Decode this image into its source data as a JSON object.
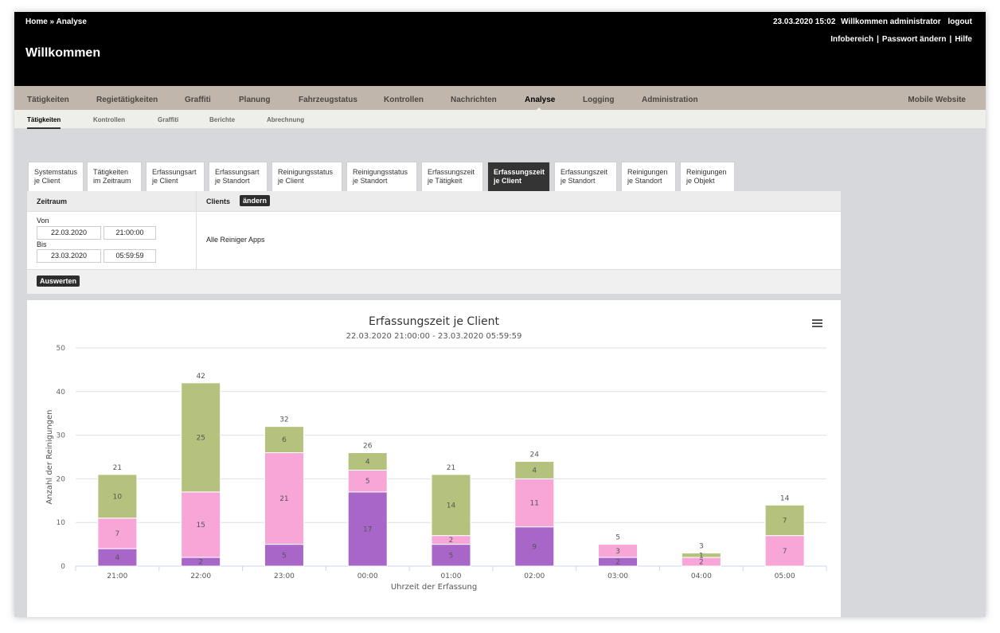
{
  "header": {
    "breadcrumb": "Home » Analyse",
    "title": "Willkommen",
    "datetime": "23.03.2020 15:02",
    "welcome": "Willkommen administrator",
    "logout": "logout",
    "links": [
      "Infobereich",
      "Passwort ändern",
      "Hilfe"
    ]
  },
  "nav": {
    "main": [
      "Tätigkeiten",
      "Regietätigkeiten",
      "Graffiti",
      "Planung",
      "Fahrzeugstatus",
      "Kontrollen",
      "Nachrichten",
      "Analyse",
      "Logging",
      "Administration"
    ],
    "main_active": "Analyse",
    "mobile": "Mobile Website",
    "sub": [
      "Tätigkeiten",
      "Kontrollen",
      "Graffiti",
      "Berichte",
      "Abrechnung"
    ],
    "sub_active": "Tätigkeiten"
  },
  "tabs": [
    [
      "Systemstatus",
      "je Client"
    ],
    [
      "Tätigkeiten",
      "im Zeitraum"
    ],
    [
      "Erfassungsart",
      "je Client"
    ],
    [
      "Erfassungsart",
      "je Standort"
    ],
    [
      "Reinigungsstatus",
      "je Client"
    ],
    [
      "Reinigungsstatus",
      "je Standort"
    ],
    [
      "Erfassungszeit",
      "je Tätigkeit"
    ],
    [
      "Erfassungszeit",
      "je Client"
    ],
    [
      "Erfassungszeit",
      "je Standort"
    ],
    [
      "Reinigungen",
      "je Standort"
    ],
    [
      "Reinigungen",
      "je Objekt"
    ]
  ],
  "active_tab": 7,
  "filter": {
    "zeitraum_label": "Zeitraum",
    "clients_label": "Clients",
    "change_button": "ändern",
    "von_label": "Von",
    "bis_label": "Bis",
    "von_date": "22.03.2020",
    "von_time": "21:00:00",
    "bis_date": "23.03.2020",
    "bis_time": "05:59:59",
    "clients_value": "Alle Reiniger Apps",
    "evaluate_button": "Auswerten"
  },
  "colors": {
    "purple": "#a866c9",
    "pink": "#f8a6d8",
    "olive": "#b5c27d",
    "active_tab": "#343434"
  },
  "chart_data": {
    "type": "bar",
    "stacked": true,
    "title": "Erfassungszeit je Client",
    "subtitle": "22.03.2020 21:00:00 - 23.03.2020 05:59:59",
    "xlabel": "Uhrzeit der Erfassung",
    "ylabel": "Anzahl der Reinigungen",
    "ylim": [
      0,
      50
    ],
    "yticks": [
      0,
      10,
      20,
      30,
      40,
      50
    ],
    "grid": true,
    "categories": [
      "21:00",
      "22:00",
      "23:00",
      "00:00",
      "01:00",
      "02:00",
      "03:00",
      "04:00",
      "05:00"
    ],
    "series": [
      {
        "color": "#a866c9",
        "values": [
          4,
          2,
          5,
          17,
          5,
          9,
          2,
          0,
          0
        ]
      },
      {
        "color": "#f8a6d8",
        "values": [
          7,
          15,
          21,
          5,
          2,
          11,
          3,
          2,
          7
        ]
      },
      {
        "color": "#b5c27d",
        "values": [
          10,
          25,
          6,
          4,
          14,
          4,
          0,
          1,
          7
        ]
      }
    ],
    "totals": [
      21,
      42,
      32,
      26,
      21,
      24,
      5,
      3,
      14
    ]
  }
}
